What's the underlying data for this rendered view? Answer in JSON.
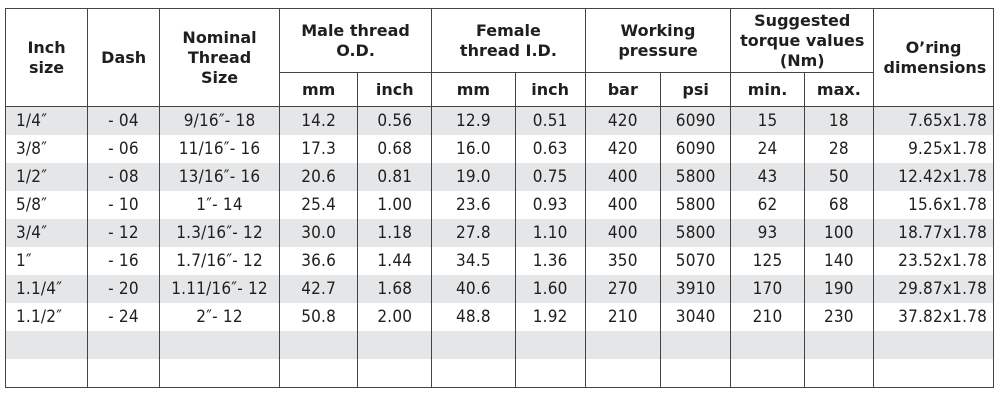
{
  "headers": {
    "inch_size": "Inch size",
    "dash": "Dash",
    "nominal": "Nominal Thread Size",
    "male": "Male thread O.D.",
    "female": "Female thread I.D.",
    "working": "Working pressure",
    "torque": "Suggested torque values (Nm)",
    "oring": "O’ring dimensions",
    "sub": {
      "male_mm": "mm",
      "male_inch": "inch",
      "female_mm": "mm",
      "female_inch": "inch",
      "bar": "bar",
      "psi": "psi",
      "min": "min.",
      "max": "max."
    }
  },
  "rows": [
    {
      "inch": "1/4″",
      "dash": "- 04",
      "nominal": "9/16″- 18",
      "male_mm": "14.2",
      "male_inch": "0.56",
      "female_mm": "12.9",
      "female_inch": "0.51",
      "bar": "420",
      "psi": "6090",
      "tmin": "15",
      "tmax": "18",
      "oring": "7.65x1.78"
    },
    {
      "inch": "3/8″",
      "dash": "- 06",
      "nominal": "11/16″- 16",
      "male_mm": "17.3",
      "male_inch": "0.68",
      "female_mm": "16.0",
      "female_inch": "0.63",
      "bar": "420",
      "psi": "6090",
      "tmin": "24",
      "tmax": "28",
      "oring": "9.25x1.78"
    },
    {
      "inch": "1/2″",
      "dash": "- 08",
      "nominal": "13/16″- 16",
      "male_mm": "20.6",
      "male_inch": "0.81",
      "female_mm": "19.0",
      "female_inch": "0.75",
      "bar": "400",
      "psi": "5800",
      "tmin": "43",
      "tmax": "50",
      "oring": "12.42x1.78"
    },
    {
      "inch": "5/8″",
      "dash": "- 10",
      "nominal": "1″- 14",
      "male_mm": "25.4",
      "male_inch": "1.00",
      "female_mm": "23.6",
      "female_inch": "0.93",
      "bar": "400",
      "psi": "5800",
      "tmin": "62",
      "tmax": "68",
      "oring": "15.6x1.78"
    },
    {
      "inch": "3/4″",
      "dash": "- 12",
      "nominal": "1.3/16″- 12",
      "male_mm": "30.0",
      "male_inch": "1.18",
      "female_mm": "27.8",
      "female_inch": "1.10",
      "bar": "400",
      "psi": "5800",
      "tmin": "93",
      "tmax": "100",
      "oring": "18.77x1.78"
    },
    {
      "inch": "1″",
      "dash": "- 16",
      "nominal": "1.7/16″- 12",
      "male_mm": "36.6",
      "male_inch": "1.44",
      "female_mm": "34.5",
      "female_inch": "1.36",
      "bar": "350",
      "psi": "5070",
      "tmin": "125",
      "tmax": "140",
      "oring": "23.52x1.78"
    },
    {
      "inch": "1.1/4″",
      "dash": "- 20",
      "nominal": "1.11/16″- 12",
      "male_mm": "42.7",
      "male_inch": "1.68",
      "female_mm": "40.6",
      "female_inch": "1.60",
      "bar": "270",
      "psi": "3910",
      "tmin": "170",
      "tmax": "190",
      "oring": "29.87x1.78"
    },
    {
      "inch": "1.1/2″",
      "dash": "- 24",
      "nominal": "2″- 12",
      "male_mm": "50.8",
      "male_inch": "2.00",
      "female_mm": "48.8",
      "female_inch": "1.92",
      "bar": "210",
      "psi": "3040",
      "tmin": "210",
      "tmax": "230",
      "oring": "37.82x1.78"
    },
    {
      "inch": "",
      "dash": "",
      "nominal": "",
      "male_mm": "",
      "male_inch": "",
      "female_mm": "",
      "female_inch": "",
      "bar": "",
      "psi": "",
      "tmin": "",
      "tmax": "",
      "oring": ""
    },
    {
      "inch": "",
      "dash": "",
      "nominal": "",
      "male_mm": "",
      "male_inch": "",
      "female_mm": "",
      "female_inch": "",
      "bar": "",
      "psi": "",
      "tmin": "",
      "tmax": "",
      "oring": ""
    }
  ]
}
